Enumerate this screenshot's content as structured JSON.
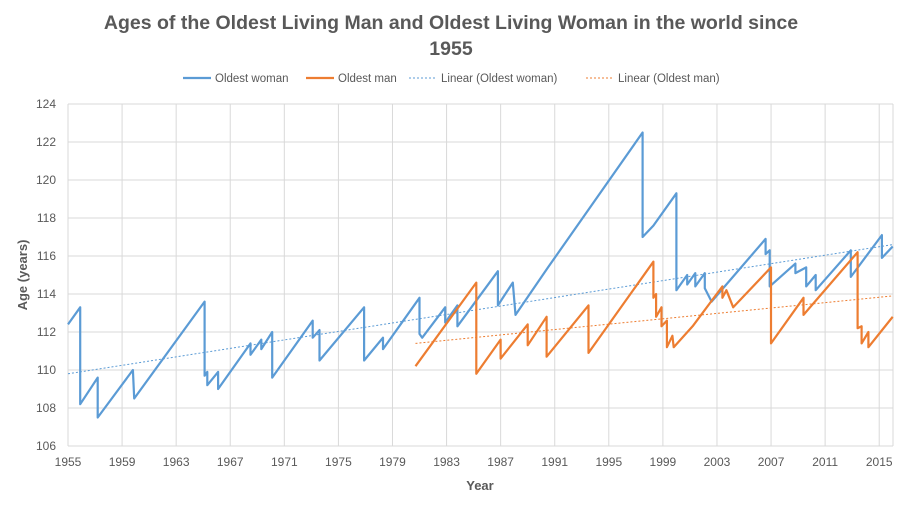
{
  "chart_data": {
    "type": "line",
    "title_lines": [
      "Ages of the Oldest Living Man and Oldest Living Woman in the world since",
      "1955"
    ],
    "xlabel": "Year",
    "ylabel": "Age (years)",
    "xlim": [
      1955,
      2016.02
    ],
    "ylim": [
      106,
      124
    ],
    "xticks": [
      1955,
      1959,
      1963,
      1967,
      1971,
      1975,
      1979,
      1983,
      1987,
      1991,
      1995,
      1999,
      2003,
      2007,
      2011,
      2015
    ],
    "yticks": [
      106,
      108,
      110,
      112,
      114,
      116,
      118,
      120,
      122,
      124
    ],
    "grid": true,
    "legend_position": "top",
    "colors": {
      "woman": "#5b9bd5",
      "man": "#ed7d31",
      "text": "#595959",
      "grid": "#d9d9d9"
    },
    "legend": [
      "Oldest woman",
      "Oldest man",
      "Linear (Oldest woman)",
      "Linear (Oldest man)"
    ],
    "series": [
      {
        "name": "Oldest woman",
        "color": "#5b9bd5",
        "points": [
          [
            1955.0,
            112.4
          ],
          [
            1955.9,
            113.3
          ],
          [
            1955.9,
            108.2
          ],
          [
            1957.2,
            109.6
          ],
          [
            1957.2,
            107.5
          ],
          [
            1959.8,
            110.0
          ],
          [
            1959.9,
            108.5
          ],
          [
            1965.1,
            113.6
          ],
          [
            1965.1,
            109.7
          ],
          [
            1965.3,
            109.9
          ],
          [
            1965.3,
            109.2
          ],
          [
            1966.1,
            109.9
          ],
          [
            1966.1,
            109.0
          ],
          [
            1968.5,
            111.4
          ],
          [
            1968.5,
            110.8
          ],
          [
            1969.3,
            111.6
          ],
          [
            1969.3,
            111.1
          ],
          [
            1970.1,
            112.0
          ],
          [
            1970.1,
            109.6
          ],
          [
            1973.1,
            112.6
          ],
          [
            1973.1,
            111.7
          ],
          [
            1973.6,
            112.1
          ],
          [
            1973.6,
            110.5
          ],
          [
            1976.9,
            113.3
          ],
          [
            1976.9,
            110.5
          ],
          [
            1978.3,
            111.7
          ],
          [
            1978.3,
            111.1
          ],
          [
            1981.0,
            113.8
          ],
          [
            1981.0,
            111.9
          ],
          [
            1981.2,
            111.7
          ],
          [
            1982.9,
            113.3
          ],
          [
            1982.9,
            112.5
          ],
          [
            1983.8,
            113.4
          ],
          [
            1983.8,
            112.3
          ],
          [
            1986.8,
            115.2
          ],
          [
            1986.8,
            113.4
          ],
          [
            1987.9,
            114.6
          ],
          [
            1988.1,
            112.9
          ],
          [
            1990.5,
            115.4
          ],
          [
            1997.5,
            122.5
          ],
          [
            1997.5,
            117.0
          ],
          [
            1998.3,
            117.6
          ],
          [
            2000.0,
            119.3
          ],
          [
            2000.0,
            114.2
          ],
          [
            2000.8,
            115.0
          ],
          [
            2000.8,
            114.5
          ],
          [
            2001.4,
            115.1
          ],
          [
            2001.4,
            114.4
          ],
          [
            2002.1,
            115.1
          ],
          [
            2002.1,
            114.3
          ],
          [
            2002.6,
            113.6
          ],
          [
            2006.6,
            116.9
          ],
          [
            2006.6,
            116.1
          ],
          [
            2006.9,
            116.3
          ],
          [
            2006.9,
            114.4
          ],
          [
            2008.8,
            115.6
          ],
          [
            2008.8,
            115.1
          ],
          [
            2009.6,
            115.4
          ],
          [
            2009.6,
            114.4
          ],
          [
            2010.3,
            115.0
          ],
          [
            2010.3,
            114.2
          ],
          [
            2012.9,
            116.3
          ],
          [
            2012.9,
            114.9
          ],
          [
            2015.2,
            117.1
          ],
          [
            2015.2,
            115.9
          ],
          [
            2016.0,
            116.5
          ]
        ]
      },
      {
        "name": "Oldest man",
        "color": "#ed7d31",
        "points": [
          [
            1980.7,
            110.2
          ],
          [
            1985.2,
            114.6
          ],
          [
            1985.2,
            109.8
          ],
          [
            1987.0,
            111.6
          ],
          [
            1987.0,
            110.6
          ],
          [
            1989.0,
            112.4
          ],
          [
            1989.0,
            111.3
          ],
          [
            1990.4,
            112.8
          ],
          [
            1990.4,
            110.7
          ],
          [
            1993.5,
            113.4
          ],
          [
            1993.5,
            110.9
          ],
          [
            1998.3,
            115.7
          ],
          [
            1998.3,
            113.8
          ],
          [
            1998.5,
            114.0
          ],
          [
            1998.5,
            112.8
          ],
          [
            1998.9,
            113.3
          ],
          [
            1998.9,
            112.3
          ],
          [
            1999.3,
            112.6
          ],
          [
            1999.3,
            111.2
          ],
          [
            1999.7,
            111.8
          ],
          [
            1999.8,
            111.2
          ],
          [
            2001.2,
            112.3
          ],
          [
            2003.4,
            114.4
          ],
          [
            2003.4,
            113.8
          ],
          [
            2003.7,
            114.2
          ],
          [
            2004.2,
            113.3
          ],
          [
            2007.0,
            115.4
          ],
          [
            2007.0,
            111.4
          ],
          [
            2009.4,
            113.8
          ],
          [
            2009.4,
            112.9
          ],
          [
            2013.4,
            116.2
          ],
          [
            2013.4,
            112.2
          ],
          [
            2013.7,
            112.3
          ],
          [
            2013.7,
            111.4
          ],
          [
            2014.2,
            112.0
          ],
          [
            2014.2,
            111.2
          ],
          [
            2016.0,
            112.8
          ]
        ]
      }
    ],
    "trendlines": [
      {
        "name": "Linear (Oldest woman)",
        "color": "#5b9bd5",
        "from": [
          1955.0,
          109.8
        ],
        "to": [
          2016.0,
          116.6
        ]
      },
      {
        "name": "Linear (Oldest man)",
        "color": "#ed7d31",
        "from": [
          1980.7,
          111.4
        ],
        "to": [
          2016.0,
          113.9
        ]
      }
    ]
  }
}
